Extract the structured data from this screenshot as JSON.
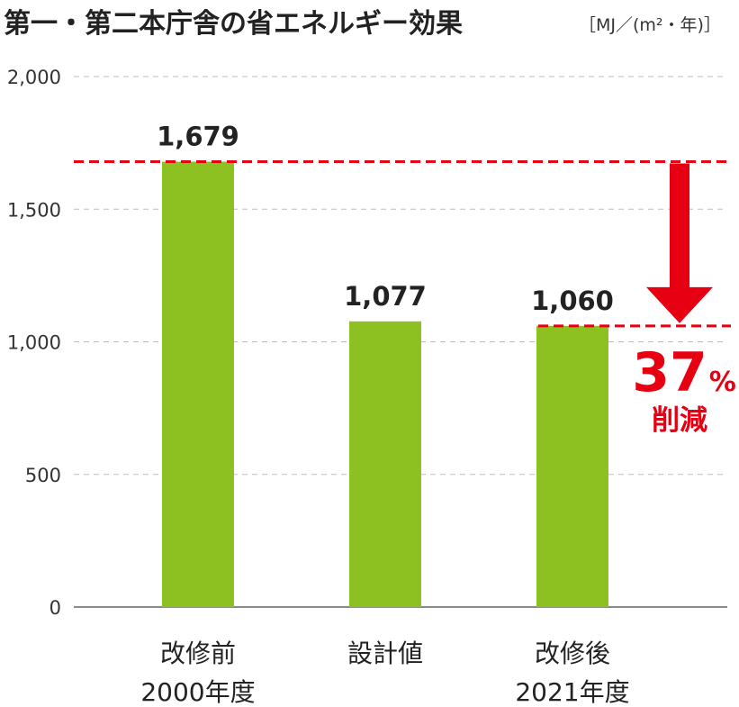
{
  "chart_data": {
    "type": "bar",
    "title": "第一・第二本庁舎の省エネルギー効果",
    "unit": "［MJ／(m²・年)］",
    "categories": [
      {
        "line1": "改修前",
        "line2": "2000年度"
      },
      {
        "line1": "設計値",
        "line2": ""
      },
      {
        "line1": "改修後",
        "line2": "2021年度"
      }
    ],
    "values": [
      1679,
      1077,
      1060
    ],
    "value_labels": [
      "1,679",
      "1,077",
      "1,060"
    ],
    "yticks": [
      {
        "value": 0,
        "label": "0"
      },
      {
        "value": 500,
        "label": "500"
      },
      {
        "value": 1000,
        "label": "1,000"
      },
      {
        "value": 1500,
        "label": "1,500"
      },
      {
        "value": 2000,
        "label": "2,000"
      }
    ],
    "ylim": [
      0,
      2000
    ],
    "grid": true,
    "bar_color": "#8dc021",
    "reference_lines": [
      1679,
      1060
    ],
    "annotation": {
      "number": "37",
      "percent": "%",
      "text": "削減",
      "color": "#e60012"
    }
  }
}
